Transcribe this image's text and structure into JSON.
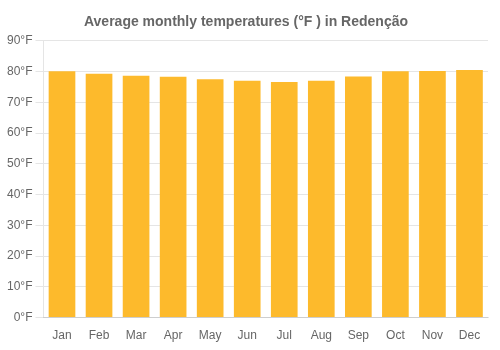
{
  "chart_data": {
    "type": "bar",
    "title": "Average monthly temperatures (°F ) in Redenção",
    "categories": [
      "Jan",
      "Feb",
      "Mar",
      "Apr",
      "May",
      "Jun",
      "Jul",
      "Aug",
      "Sep",
      "Oct",
      "Nov",
      "Dec"
    ],
    "values": [
      80.1,
      79.3,
      78.6,
      78.3,
      77.5,
      77.0,
      76.6,
      77.0,
      78.4,
      80.1,
      80.2,
      80.5
    ],
    "color": "#FDBA2C",
    "ylim": [
      0,
      90
    ],
    "yticks": [
      {
        "value": 0,
        "label": "0°F"
      },
      {
        "value": 10,
        "label": "10°F"
      },
      {
        "value": 20,
        "label": "20°F"
      },
      {
        "value": 30,
        "label": "30°F"
      },
      {
        "value": 40,
        "label": "40°F"
      },
      {
        "value": 50,
        "label": "50°F"
      },
      {
        "value": 60,
        "label": "60°F"
      },
      {
        "value": 70,
        "label": "70°F"
      },
      {
        "value": 80,
        "label": "80°F"
      },
      {
        "value": 90,
        "label": "90°F"
      }
    ],
    "grid": true
  }
}
